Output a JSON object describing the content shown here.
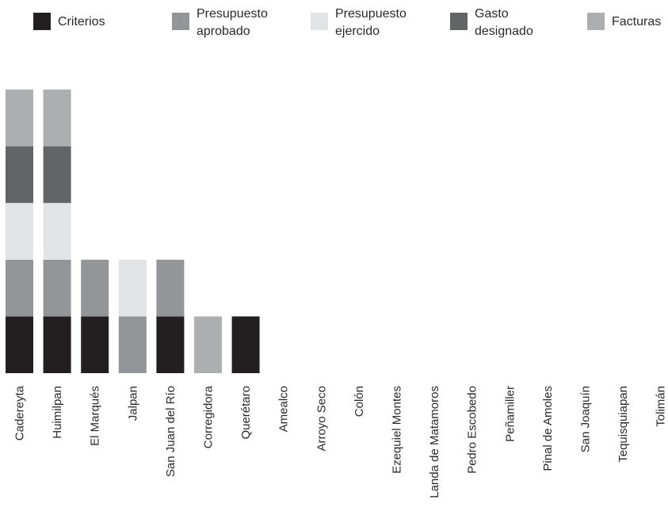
{
  "chart_data": {
    "type": "bar",
    "stacked": true,
    "title": "",
    "xlabel": "",
    "ylabel": "",
    "ylim": [
      0,
      5
    ],
    "grid": false,
    "legend": "top",
    "categories": [
      "Cadereyta",
      "Huimilpan",
      "El Marqués",
      "Jalpan",
      "San Juan del Río",
      "Corregidora",
      "Querétaro",
      "Amealco",
      "Arroyo Seco",
      "Colón",
      "Ezequiel Montes",
      "Landa de Matamoros",
      "Pedro Escobedo",
      "Peñamiller",
      "Pinal de Amoles",
      "San Joaquín",
      "Tequisquiapan",
      "Tolimán"
    ],
    "series": [
      {
        "name": "Criterios",
        "legend_lines": [
          "Criterios"
        ],
        "color": "#231f20",
        "values": [
          1,
          1,
          1,
          0,
          1,
          0,
          1,
          0,
          0,
          0,
          0,
          0,
          0,
          0,
          0,
          0,
          0,
          0
        ]
      },
      {
        "name": "Presupuesto aprobado",
        "legend_lines": [
          "Presupuesto",
          "aprobado"
        ],
        "color": "#939598",
        "values": [
          1,
          1,
          1,
          1,
          1,
          0,
          0,
          0,
          0,
          0,
          0,
          0,
          0,
          0,
          0,
          0,
          0,
          0
        ]
      },
      {
        "name": "Presupuesto ejercido",
        "legend_lines": [
          "Presupuesto",
          "ejercido"
        ],
        "color": "#e2e3e4",
        "values": [
          1,
          1,
          0,
          1,
          0,
          0,
          0,
          0,
          0,
          0,
          0,
          0,
          0,
          0,
          0,
          0,
          0,
          0
        ]
      },
      {
        "name": "Gasto designado",
        "legend_lines": [
          "Gasto",
          "designado"
        ],
        "color": "#636466",
        "values": [
          1,
          1,
          0,
          0,
          0,
          0,
          0,
          0,
          0,
          0,
          0,
          0,
          0,
          0,
          0,
          0,
          0,
          0
        ]
      },
      {
        "name": "Facturas",
        "legend_lines": [
          "Facturas"
        ],
        "color": "#adaeb0",
        "values": [
          1,
          1,
          0,
          0,
          0,
          1,
          0,
          0,
          0,
          0,
          0,
          0,
          0,
          0,
          0,
          0,
          0,
          0
        ]
      }
    ]
  }
}
